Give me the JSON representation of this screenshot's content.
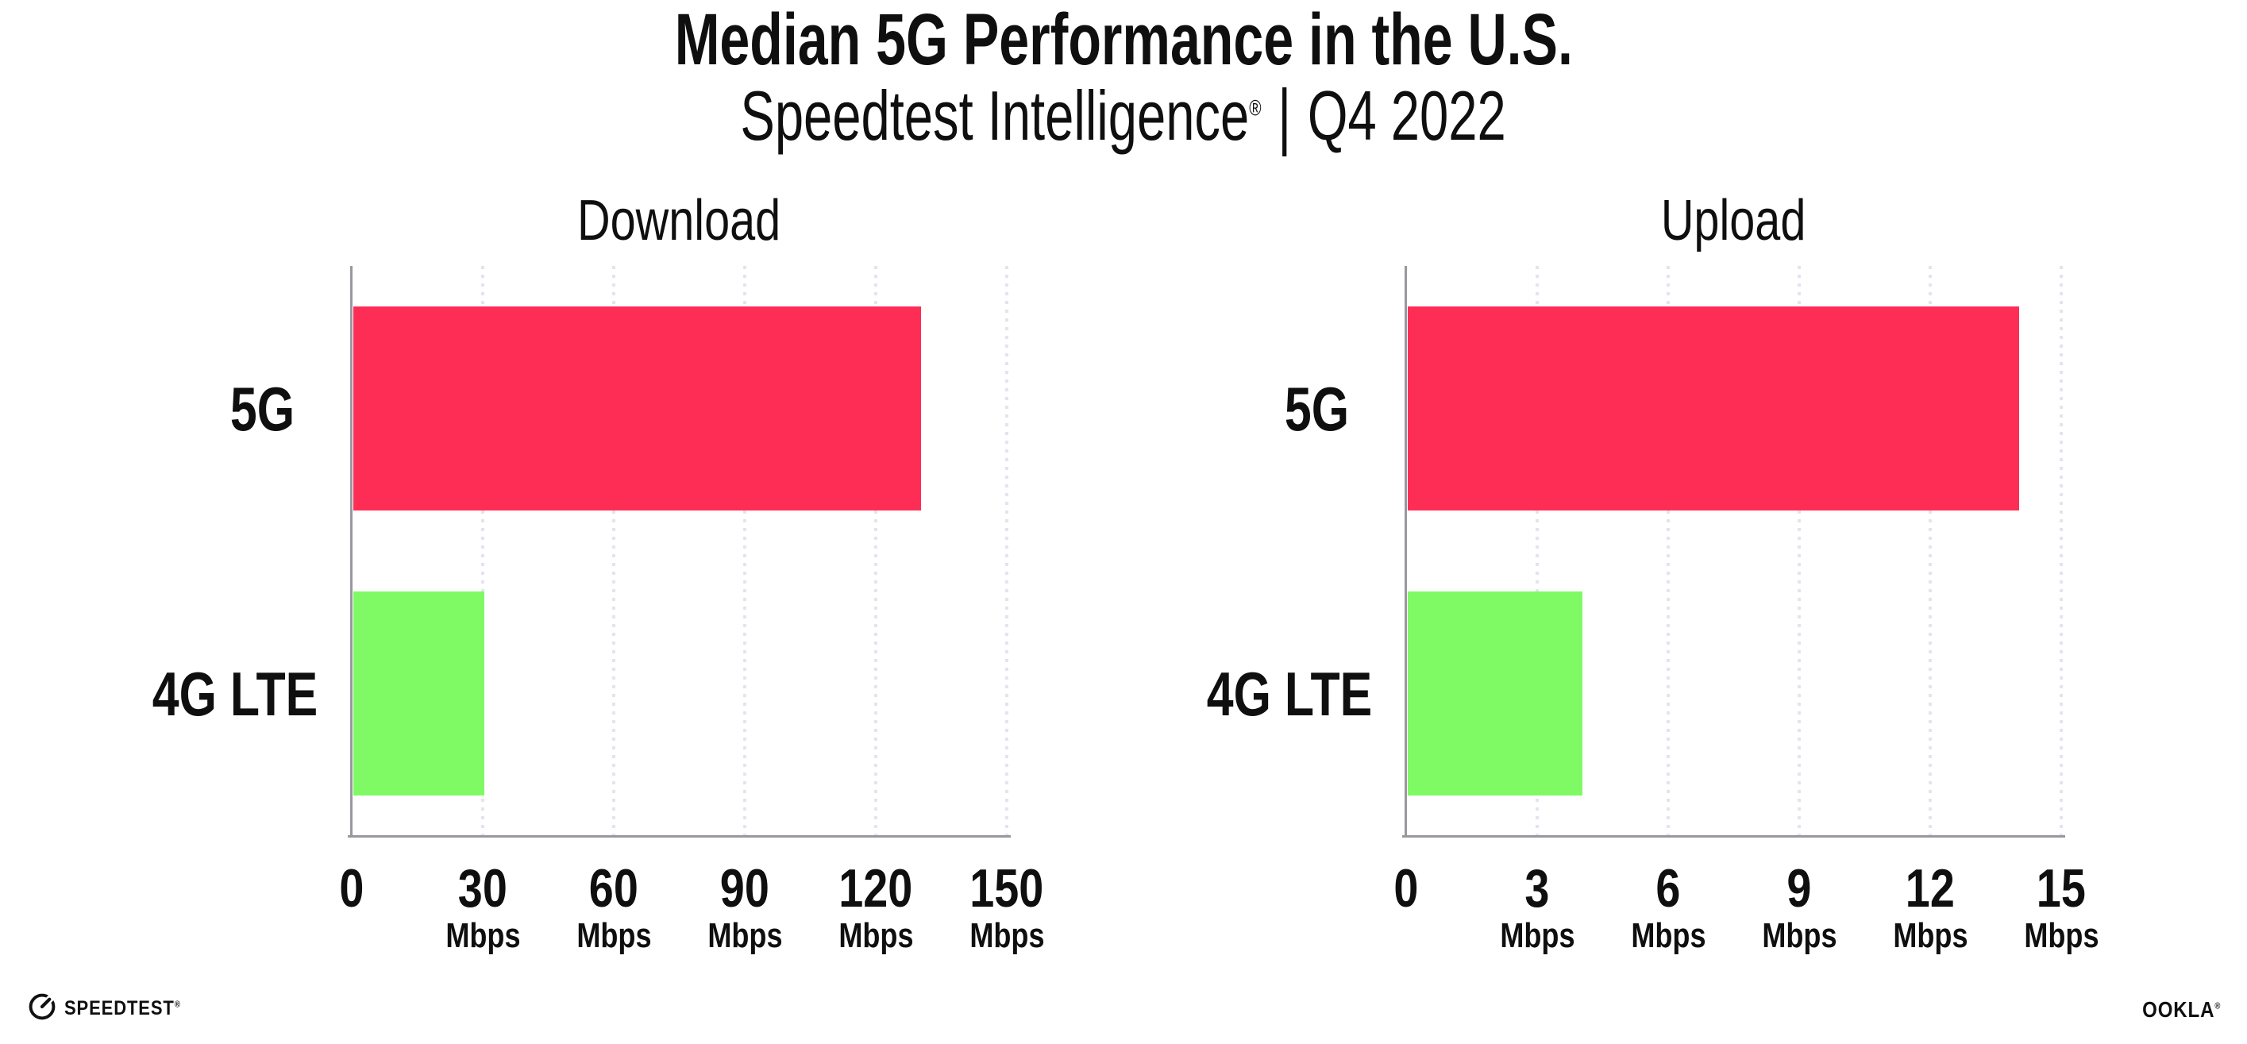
{
  "header": {
    "title": "Median 5G Performance in the U.S.",
    "subtitle": {
      "brand": "Speedtest Intelligence",
      "registered": "®",
      "separator": "|",
      "period": "Q4 2022"
    }
  },
  "chart_data": [
    {
      "type": "bar",
      "orientation": "horizontal",
      "title": "Download",
      "categories": [
        "5G",
        "4G LTE"
      ],
      "values": [
        130,
        30
      ],
      "unit": "Mbps",
      "xlim": [
        0,
        150
      ],
      "xticks": [
        0,
        30,
        60,
        90,
        120,
        150
      ],
      "bar_colors": [
        "#FE2D55",
        "#80FA64"
      ],
      "grid": "dotted-vertical",
      "legend": "none"
    },
    {
      "type": "bar",
      "orientation": "horizontal",
      "title": "Upload",
      "categories": [
        "5G",
        "4G LTE"
      ],
      "values": [
        14,
        4
      ],
      "unit": "Mbps",
      "xlim": [
        0,
        15
      ],
      "xticks": [
        0,
        3,
        6,
        9,
        12,
        15
      ],
      "bar_colors": [
        "#FE2D55",
        "#80FA64"
      ],
      "grid": "dotted-vertical",
      "legend": "none"
    }
  ],
  "footer": {
    "speedtest_text": "SPEEDTEST",
    "speedtest_trademark": "®",
    "ookla_text": "OOKLA",
    "ookla_trademark": "®"
  },
  "colors": {
    "background": "#FFFFFF",
    "bar_5g": "#FE2D55",
    "bar_4g_lte": "#80FA64",
    "axis": "#98989E",
    "gridline": "#E4E4EE",
    "text": "#0F0F0F"
  }
}
